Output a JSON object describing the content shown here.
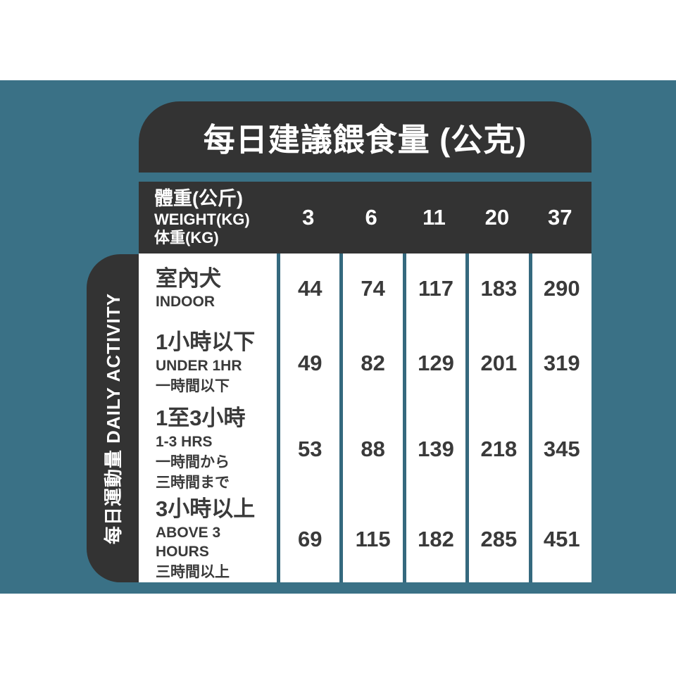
{
  "chart_data": {
    "type": "table",
    "title": "每日建議餵食量 (公克)",
    "column_header": {
      "zh": "體重(公斤)",
      "en": "WEIGHT(KG)",
      "jp": "体重(KG)"
    },
    "weight_columns": [
      "3",
      "6",
      "11",
      "20",
      "37"
    ],
    "row_group_label": "每日運動量 DAILY ACTIVITY",
    "rows": [
      {
        "labels": [
          "室內犬",
          "INDOOR"
        ],
        "values": [
          44,
          74,
          117,
          183,
          290
        ]
      },
      {
        "labels": [
          "1小時以下",
          "UNDER 1HR",
          "一時間以下"
        ],
        "values": [
          49,
          82,
          129,
          201,
          319
        ]
      },
      {
        "labels": [
          "1至3小時",
          "1-3 HRS",
          "一時間から",
          "三時間まで"
        ],
        "values": [
          53,
          88,
          139,
          218,
          345
        ]
      },
      {
        "labels": [
          "3小時以上",
          "ABOVE 3 HOURS",
          "三時間以上"
        ],
        "values": [
          69,
          115,
          182,
          285,
          451
        ]
      }
    ]
  },
  "colors": {
    "background_teal": "#3a7186",
    "panel_dark": "#333333",
    "table_white": "#ffffff",
    "divider_teal": "#35697e",
    "text_dark": "#3a3a3a",
    "text_white": "#ffffff"
  }
}
